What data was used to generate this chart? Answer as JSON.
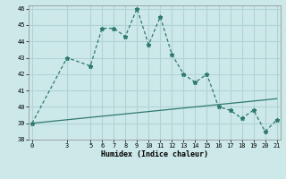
{
  "x_data": [
    0,
    3,
    5,
    6,
    7,
    8,
    9,
    10,
    11,
    12,
    13,
    14,
    15,
    16,
    17,
    18,
    19,
    20,
    21
  ],
  "y_main": [
    39,
    43,
    42.5,
    44.8,
    44.8,
    44.3,
    46,
    43.8,
    45.5,
    43.2,
    42,
    41.5,
    42,
    40,
    39.8,
    39.3,
    39.8,
    38.5,
    39.2
  ],
  "trend_x": [
    0,
    21
  ],
  "trend_y": [
    39.0,
    40.5
  ],
  "line_color": "#2d7a6e",
  "bg_color": "#cde8e8",
  "grid_color": "#b0d4d4",
  "xlabel": "Humidex (Indice chaleur)",
  "xlim": [
    -0.3,
    21.3
  ],
  "ylim": [
    38,
    46.2
  ],
  "yticks": [
    38,
    39,
    40,
    41,
    42,
    43,
    44,
    45,
    46
  ],
  "xticks": [
    0,
    3,
    5,
    6,
    7,
    8,
    9,
    10,
    11,
    12,
    13,
    14,
    15,
    16,
    17,
    18,
    19,
    20,
    21
  ],
  "tick_fontsize": 5.0,
  "label_fontsize": 6.0
}
